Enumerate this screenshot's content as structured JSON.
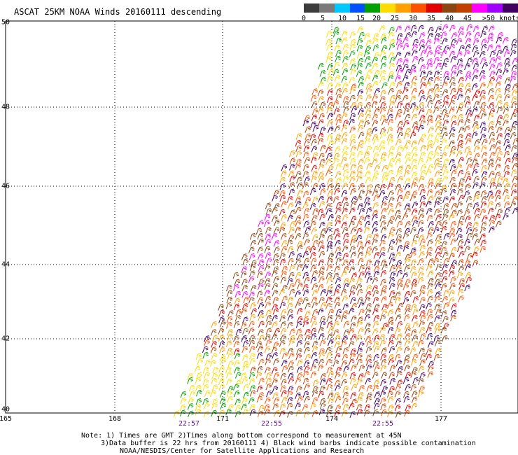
{
  "title": "ASCAT 25KM NOAA Winds 20160111 descending",
  "legend": {
    "colors": [
      "#3c3c3c",
      "#7a7a7a",
      "#00c8ff",
      "#0050ff",
      "#00a000",
      "#ffdc00",
      "#ffa000",
      "#ff5000",
      "#e00000",
      "#8b4513",
      "#c04000",
      "#ff00ff",
      "#a000ff",
      "#400060"
    ],
    "tick_labels": [
      "0",
      "5",
      "10",
      "15",
      "20",
      "25",
      "30",
      "35",
      "40",
      "45",
      ">50 knots"
    ]
  },
  "axes": {
    "lat_labels": [
      "50",
      "48",
      "46",
      "44",
      "42",
      "40"
    ],
    "lon_labels": [
      "165",
      "168",
      "171",
      "174",
      "177"
    ]
  },
  "pass_times": [
    "22:57",
    "22:55",
    "22:55"
  ],
  "notes": {
    "line1": "Note: 1) Times are GMT 2)Times along bottom correspond to measurement at 45N",
    "line2": "3)Data buffer is 22 hrs from 20160111 4) Black wind barbs indicate possible contamination",
    "line3": "NOAA/NESDIS/Center for Satellite Applications and Research"
  }
}
